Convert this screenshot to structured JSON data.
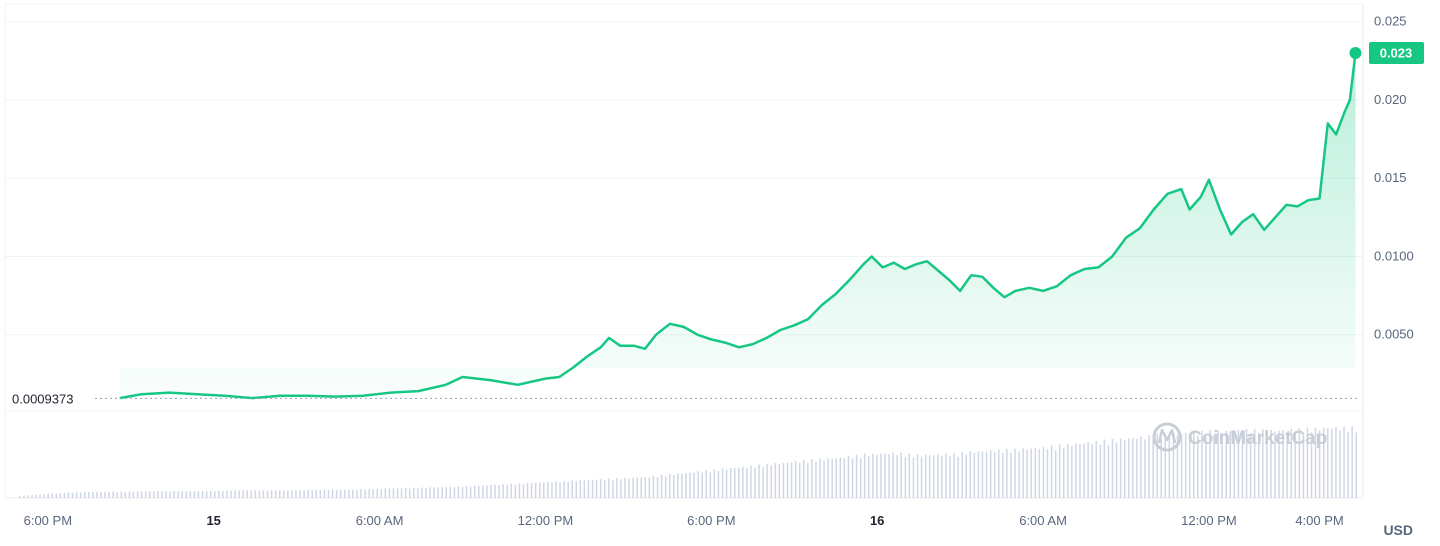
{
  "chart_data": {
    "type": "area",
    "currency_label": "USD",
    "watermark": "CoinMarketCap",
    "current_price_label": "0.023",
    "baseline_label": "0.0009373",
    "baseline_value": 0.0009373,
    "y_ticks": [
      {
        "value": 0.025,
        "label": "0.025"
      },
      {
        "value": 0.02,
        "label": "0.020"
      },
      {
        "value": 0.015,
        "label": "0.015"
      },
      {
        "value": 0.01,
        "label": "0.0100"
      },
      {
        "value": 0.005,
        "label": "0.0050"
      }
    ],
    "ylim": [
      0.0,
      0.026
    ],
    "x_range": [
      -1.5,
      46.5
    ],
    "x_ticks": [
      {
        "x": -1.0,
        "label": "6:00 PM",
        "bold": false
      },
      {
        "x": 5.0,
        "label": "15",
        "bold": true
      },
      {
        "x": 11.0,
        "label": "6:00 AM",
        "bold": false
      },
      {
        "x": 17.0,
        "label": "12:00 PM",
        "bold": false
      },
      {
        "x": 23.0,
        "label": "6:00 PM",
        "bold": false
      },
      {
        "x": 29.0,
        "label": "16",
        "bold": true
      },
      {
        "x": 35.0,
        "label": "6:00 AM",
        "bold": false
      },
      {
        "x": 41.0,
        "label": "12:00 PM",
        "bold": false
      },
      {
        "x": 45.0,
        "label": "4:00 PM",
        "bold": false
      }
    ],
    "series": [
      {
        "color": "#16c784",
        "points": [
          [
            1.6,
            0.00095
          ],
          [
            2.4,
            0.0012
          ],
          [
            3.4,
            0.0013
          ],
          [
            4.4,
            0.0012
          ],
          [
            5.4,
            0.0011
          ],
          [
            6.4,
            0.00095
          ],
          [
            7.4,
            0.0011
          ],
          [
            8.4,
            0.0011
          ],
          [
            9.4,
            0.00105
          ],
          [
            10.4,
            0.0011
          ],
          [
            11.4,
            0.0013
          ],
          [
            12.4,
            0.0014
          ],
          [
            13.4,
            0.0018
          ],
          [
            14.0,
            0.0023
          ],
          [
            15.0,
            0.0021
          ],
          [
            16.0,
            0.0018
          ],
          [
            17.0,
            0.0022
          ],
          [
            17.5,
            0.0023
          ],
          [
            18.0,
            0.0029
          ],
          [
            18.5,
            0.0036
          ],
          [
            19.0,
            0.0042
          ],
          [
            19.3,
            0.0048
          ],
          [
            19.7,
            0.0043
          ],
          [
            20.2,
            0.0043
          ],
          [
            20.6,
            0.0041
          ],
          [
            21.0,
            0.005
          ],
          [
            21.5,
            0.0057
          ],
          [
            22.0,
            0.0055
          ],
          [
            22.5,
            0.005
          ],
          [
            23.0,
            0.0047
          ],
          [
            23.5,
            0.0045
          ],
          [
            24.0,
            0.0042
          ],
          [
            24.5,
            0.0044
          ],
          [
            25.0,
            0.0048
          ],
          [
            25.5,
            0.0053
          ],
          [
            26.0,
            0.0056
          ],
          [
            26.5,
            0.006
          ],
          [
            27.0,
            0.0069
          ],
          [
            27.5,
            0.0076
          ],
          [
            28.0,
            0.0085
          ],
          [
            28.5,
            0.0095
          ],
          [
            28.8,
            0.01
          ],
          [
            29.2,
            0.0093
          ],
          [
            29.6,
            0.0096
          ],
          [
            30.0,
            0.0092
          ],
          [
            30.4,
            0.0095
          ],
          [
            30.8,
            0.0097
          ],
          [
            31.2,
            0.0091
          ],
          [
            31.6,
            0.0085
          ],
          [
            32.0,
            0.0078
          ],
          [
            32.4,
            0.0088
          ],
          [
            32.8,
            0.0087
          ],
          [
            33.2,
            0.008
          ],
          [
            33.6,
            0.0074
          ],
          [
            34.0,
            0.0078
          ],
          [
            34.5,
            0.008
          ],
          [
            35.0,
            0.0078
          ],
          [
            35.5,
            0.0081
          ],
          [
            36.0,
            0.0088
          ],
          [
            36.5,
            0.0092
          ],
          [
            37.0,
            0.0093
          ],
          [
            37.5,
            0.01
          ],
          [
            38.0,
            0.0112
          ],
          [
            38.5,
            0.0118
          ],
          [
            39.0,
            0.013
          ],
          [
            39.5,
            0.014
          ],
          [
            40.0,
            0.0143
          ],
          [
            40.3,
            0.013
          ],
          [
            40.7,
            0.0138
          ],
          [
            41.0,
            0.0149
          ],
          [
            41.4,
            0.013
          ],
          [
            41.8,
            0.0114
          ],
          [
            42.2,
            0.0122
          ],
          [
            42.6,
            0.0127
          ],
          [
            43.0,
            0.0117
          ],
          [
            43.4,
            0.0125
          ],
          [
            43.8,
            0.0133
          ],
          [
            44.2,
            0.0132
          ],
          [
            44.6,
            0.0136
          ],
          [
            45.0,
            0.0137
          ],
          [
            45.3,
            0.0185
          ],
          [
            45.6,
            0.0178
          ],
          [
            45.9,
            0.0192
          ],
          [
            46.1,
            0.02
          ],
          [
            46.3,
            0.023
          ]
        ]
      }
    ],
    "volume_values": [
      0.03,
      0.06,
      0.08,
      0.09,
      0.09,
      0.1,
      0.1,
      0.1,
      0.11,
      0.11,
      0.11,
      0.12,
      0.12,
      0.13,
      0.14,
      0.15,
      0.16,
      0.18,
      0.2,
      0.22,
      0.24,
      0.26,
      0.28,
      0.3,
      0.34,
      0.38,
      0.42,
      0.46,
      0.5,
      0.54,
      0.57,
      0.62,
      0.64,
      0.61,
      0.62,
      0.66,
      0.68,
      0.7,
      0.74,
      0.78,
      0.82,
      0.86,
      0.9,
      0.93,
      0.95,
      0.96,
      0.96,
      0.97,
      1.0,
      1.0
    ],
    "grid": true,
    "legend": false
  }
}
